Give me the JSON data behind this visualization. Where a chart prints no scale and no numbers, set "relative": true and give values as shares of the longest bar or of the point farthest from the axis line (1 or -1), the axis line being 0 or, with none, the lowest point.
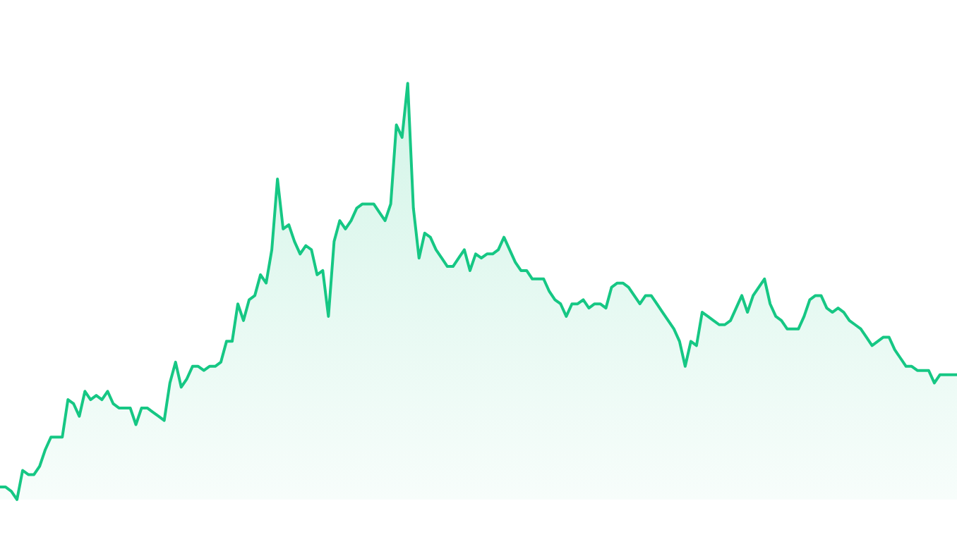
{
  "chart_data": {
    "type": "area",
    "relative": true,
    "legend": false,
    "marker": "none",
    "categories": [
      null,
      null,
      null,
      null,
      null,
      null,
      null,
      null,
      null,
      null,
      null,
      null,
      null,
      null,
      null,
      null,
      null,
      null,
      null,
      null,
      null,
      null,
      null,
      null,
      null,
      null,
      null,
      null,
      null,
      null,
      null,
      null,
      null,
      null,
      null,
      null,
      null,
      null,
      null,
      null,
      null,
      null,
      null,
      null,
      null,
      null,
      null,
      null,
      null,
      null,
      null,
      null,
      null,
      null,
      null,
      null,
      null,
      null,
      null,
      null,
      null,
      null,
      null,
      null,
      null,
      null,
      null,
      null,
      null,
      null,
      null,
      null,
      null,
      null,
      null,
      null,
      null,
      null,
      null,
      null,
      null,
      null,
      null,
      null,
      null,
      null,
      null,
      null,
      null,
      null,
      null,
      null,
      null,
      null,
      null,
      null,
      null,
      null,
      null,
      null,
      null,
      null,
      null,
      null,
      null,
      null,
      null,
      null,
      null,
      null,
      null,
      null,
      null,
      null,
      null,
      null,
      null,
      null,
      null,
      null,
      null,
      null,
      null,
      null,
      null,
      null,
      null,
      null,
      null,
      null,
      null,
      null,
      null,
      null,
      null,
      null,
      null,
      null,
      null,
      null,
      null,
      null,
      null,
      null,
      null,
      null,
      null,
      null,
      null,
      null,
      null,
      null,
      null,
      null,
      null,
      null,
      null,
      null,
      null,
      null,
      null,
      null,
      null,
      null,
      null,
      null,
      null,
      null,
      null,
      null
    ],
    "series": [
      {
        "color": "#16c784",
        "values": [
          0.03,
          0.03,
          0.02,
          0,
          0.07,
          0.06,
          0.06,
          0.08,
          0.12,
          0.15,
          0.15,
          0.15,
          0.24,
          0.23,
          0.2,
          0.26,
          0.24,
          0.25,
          0.24,
          0.26,
          0.23,
          0.22,
          0.22,
          0.22,
          0.18,
          0.22,
          0.22,
          0.21,
          0.2,
          0.19,
          0.28,
          0.33,
          0.27,
          0.29,
          0.32,
          0.32,
          0.31,
          0.32,
          0.32,
          0.33,
          0.38,
          0.38,
          0.47,
          0.43,
          0.48,
          0.49,
          0.54,
          0.52,
          0.6,
          0.77,
          0.65,
          0.66,
          0.62,
          0.59,
          0.61,
          0.6,
          0.54,
          0.55,
          0.44,
          0.62,
          0.67,
          0.65,
          0.67,
          0.7,
          0.71,
          0.71,
          0.71,
          0.69,
          0.67,
          0.71,
          0.9,
          0.87,
          1,
          0.7,
          0.58,
          0.64,
          0.63,
          0.6,
          0.58,
          0.56,
          0.56,
          0.58,
          0.6,
          0.55,
          0.59,
          0.58,
          0.59,
          0.59,
          0.6,
          0.63,
          0.6,
          0.57,
          0.55,
          0.55,
          0.53,
          0.53,
          0.53,
          0.5,
          0.48,
          0.47,
          0.44,
          0.47,
          0.47,
          0.48,
          0.46,
          0.47,
          0.47,
          0.46,
          0.51,
          0.52,
          0.52,
          0.51,
          0.49,
          0.47,
          0.49,
          0.49,
          0.47,
          0.45,
          0.43,
          0.41,
          0.38,
          0.32,
          0.38,
          0.37,
          0.45,
          0.44,
          0.43,
          0.42,
          0.42,
          0.43,
          0.46,
          0.49,
          0.45,
          0.49,
          0.51,
          0.53,
          0.47,
          0.44,
          0.43,
          0.41,
          0.41,
          0.41,
          0.44,
          0.48,
          0.49,
          0.49,
          0.46,
          0.45,
          0.46,
          0.45,
          0.43,
          0.42,
          0.41,
          0.39,
          0.37,
          0.38,
          0.39,
          0.39,
          0.36,
          0.34,
          0.32,
          0.32,
          0.31,
          0.31,
          0.31,
          0.28,
          0.3,
          0.3,
          0.3,
          0.3
        ]
      }
    ]
  }
}
